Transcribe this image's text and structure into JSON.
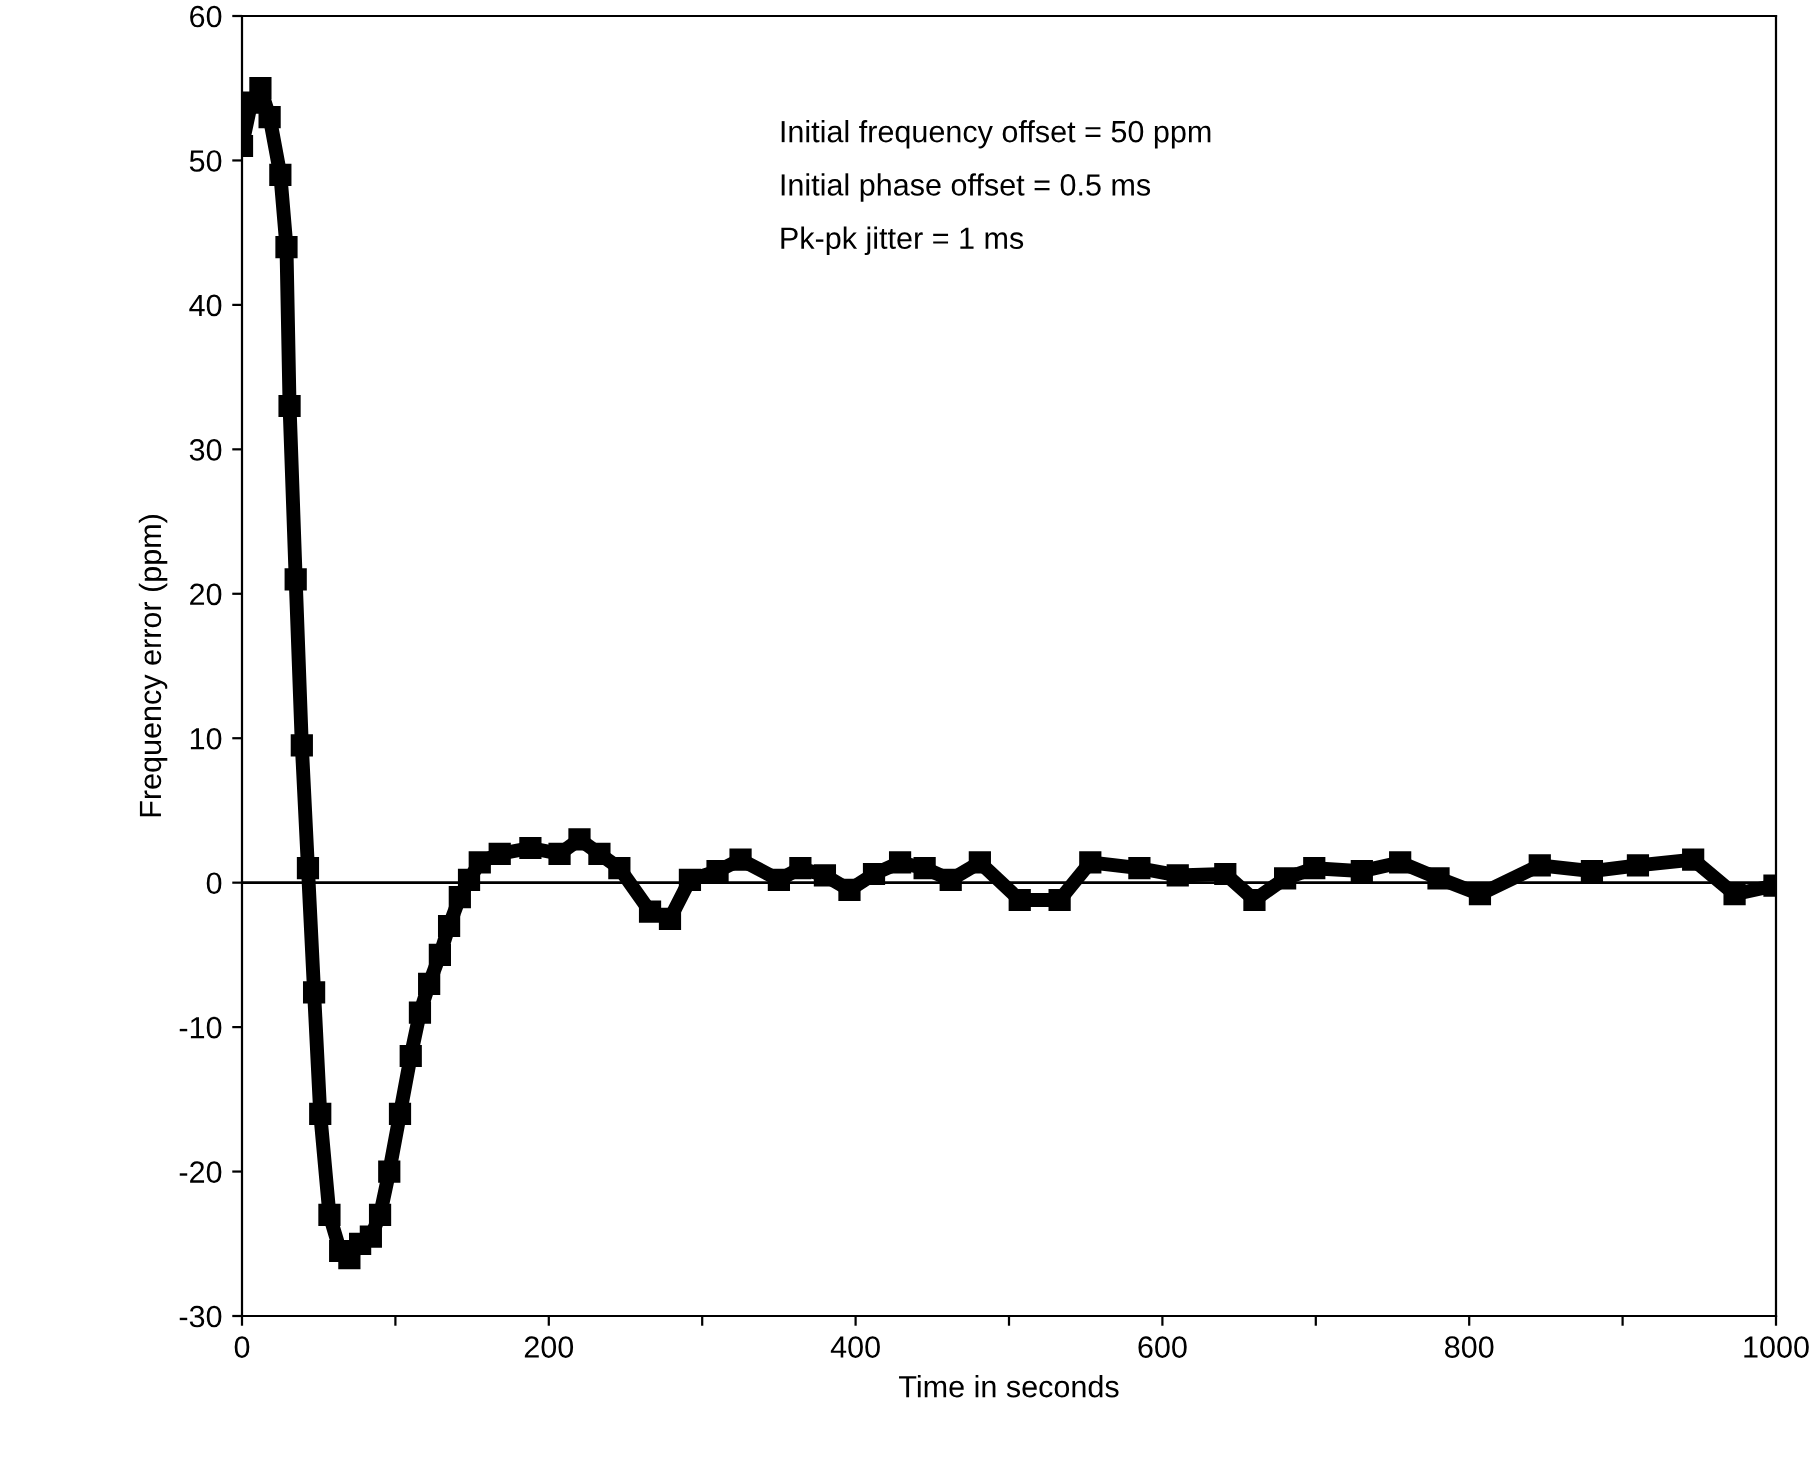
{
  "chart_data": {
    "type": "line",
    "xlabel": "Time in seconds",
    "ylabel": "Frequency error (ppm)",
    "annotations": [
      "Initial frequency offset = 50 ppm",
      "Initial phase offset = 0.5 ms",
      "Pk-pk jitter = 1 ms"
    ],
    "series": [
      {
        "color": "#000000",
        "x": [
          0,
          6,
          12,
          18,
          25,
          29,
          31,
          35,
          39,
          43,
          47,
          51,
          57,
          64,
          70,
          77,
          84,
          90,
          96,
          103,
          110,
          116,
          122,
          129,
          135,
          142,
          148,
          155,
          168,
          188,
          207,
          220,
          233,
          246,
          266,
          279,
          292,
          310,
          325,
          350,
          364,
          380,
          396,
          412,
          429,
          445,
          462,
          481,
          507,
          533,
          553,
          585,
          610,
          641,
          660,
          680,
          699,
          730,
          755,
          780,
          807,
          846,
          880,
          910,
          946,
          973,
          999
        ],
        "values": [
          51,
          54,
          55,
          53,
          49,
          44,
          33,
          21,
          9.5,
          1,
          -7.6,
          -16,
          -23,
          -25.5,
          -26,
          -25,
          -24.5,
          -23,
          -20,
          -16,
          -12,
          -9,
          -7,
          -5,
          -3,
          -1,
          0.2,
          1.4,
          2,
          2.4,
          2,
          3,
          2,
          1,
          -2,
          -2.5,
          0.2,
          0.8,
          1.6,
          0.2,
          1,
          0.5,
          -0.5,
          0.6,
          1.4,
          1,
          0.2,
          1.4,
          -1.2,
          -1.2,
          1.4,
          1,
          0.5,
          0.6,
          -1.2,
          0.3,
          1,
          0.8,
          1.4,
          0.3,
          -0.8,
          1.2,
          0.8,
          1.2,
          1.6,
          -0.8,
          -0.2
        ]
      }
    ],
    "xlim": [
      0,
      1000
    ],
    "ylim": [
      -30,
      60
    ],
    "xticks": [
      0,
      {
        "value": 100,
        "label": null
      },
      200,
      {
        "value": 300,
        "label": null
      },
      400,
      {
        "value": 500,
        "label": null
      },
      600,
      {
        "value": 700,
        "label": null
      },
      800,
      {
        "value": 900,
        "label": null
      },
      1000
    ],
    "yticks": [
      -30,
      -20,
      -10,
      0,
      10,
      20,
      30,
      40,
      50,
      60
    ],
    "ref_lines": [
      {
        "axis": "y",
        "value": 0,
        "color": "#000000"
      }
    ],
    "marker": "square",
    "line_style": "solid",
    "grid": false,
    "legend": false
  }
}
